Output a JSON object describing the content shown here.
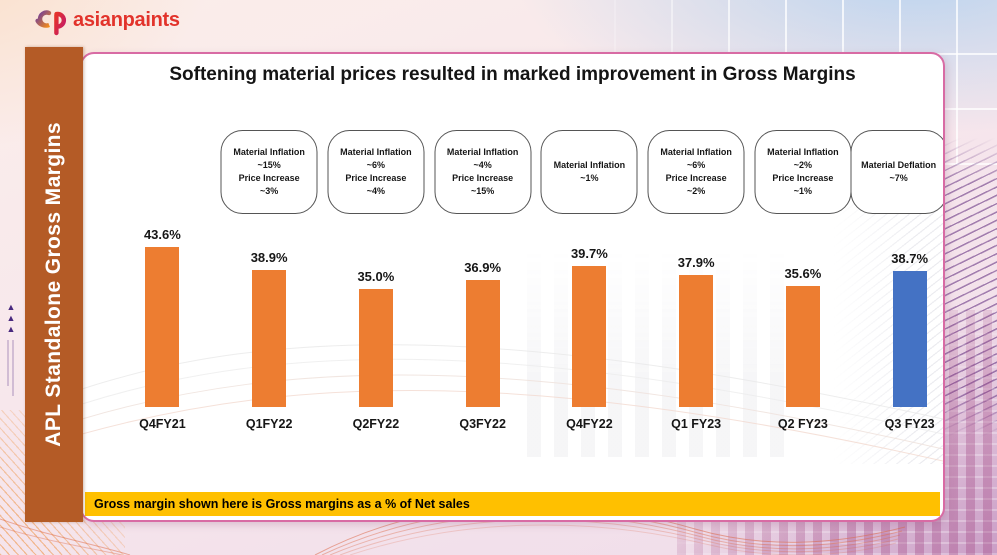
{
  "logo": {
    "mark": "ap",
    "wordmark": "asianpaints"
  },
  "sidebar": {
    "label": "APL Standalone Gross Margins"
  },
  "slide": {
    "title": "Softening material prices resulted in marked improvement in Gross Margins",
    "footnote": "Gross margin shown here is Gross margins as a % of Net sales"
  },
  "chart_data": {
    "type": "bar",
    "title": "Softening material prices resulted in marked improvement in Gross Margins",
    "categories": [
      "Q4FY21",
      "Q1FY22",
      "Q2FY22",
      "Q3FY22",
      "Q4FY22",
      "Q1 FY23",
      "Q2 FY23",
      "Q3 FY23"
    ],
    "values": [
      43.6,
      38.9,
      35.0,
      36.9,
      39.7,
      37.9,
      35.6,
      38.7
    ],
    "value_labels": [
      "43.6%",
      "38.9%",
      "35.0%",
      "36.9%",
      "39.7%",
      "37.9%",
      "35.6%",
      "38.7%"
    ],
    "unit": "%",
    "xlabel": "",
    "ylabel": "",
    "ylim": [
      11,
      46
    ],
    "grid": false,
    "legend": false,
    "colors": {
      "default": "#ED7D31",
      "highlight": "#4472C4"
    },
    "highlight_index": 7,
    "annotations": [
      null,
      [
        "Material Inflation",
        "~15%",
        "Price Increase",
        "~3%"
      ],
      [
        "Material Inflation",
        "~6%",
        "Price Increase",
        "~4%"
      ],
      [
        "Material Inflation",
        "~4%",
        "Price Increase",
        "~15%"
      ],
      [
        "Material Inflation",
        "~1%"
      ],
      [
        "Material Inflation",
        "~6%",
        "Price Increase",
        "~2%"
      ],
      [
        "Material Inflation",
        "~2%",
        "Price Increase",
        "~1%"
      ],
      [
        "Material Deflation",
        "~7%"
      ]
    ]
  }
}
